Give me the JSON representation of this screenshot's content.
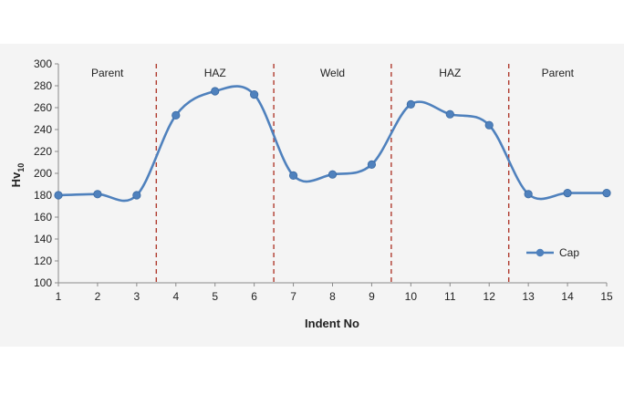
{
  "chart_data": {
    "type": "line",
    "title": "",
    "xlabel": "Indent No",
    "ylabel": "Hv",
    "ylabel_subscript": "10",
    "x": [
      1,
      2,
      3,
      4,
      5,
      6,
      7,
      8,
      9,
      10,
      11,
      12,
      13,
      14,
      15
    ],
    "xlim": [
      1,
      15
    ],
    "ylim": [
      100,
      300
    ],
    "yticks": [
      100,
      120,
      140,
      160,
      180,
      200,
      220,
      240,
      260,
      280,
      300
    ],
    "series": [
      {
        "name": "Cap",
        "values": [
          180,
          181,
          180,
          253,
          275,
          272,
          198,
          199,
          208,
          263,
          254,
          244,
          181,
          182,
          182
        ],
        "color": "#4f81bd"
      }
    ],
    "regions": [
      {
        "label": "Parent",
        "from": 1,
        "to": 3.5
      },
      {
        "label": "HAZ",
        "from": 3.5,
        "to": 6.5
      },
      {
        "label": "Weld",
        "from": 6.5,
        "to": 9.5
      },
      {
        "label": "HAZ",
        "from": 9.5,
        "to": 12.5
      },
      {
        "label": "Parent",
        "from": 12.5,
        "to": 15
      }
    ],
    "region_boundaries": [
      3.5,
      6.5,
      9.5,
      12.5
    ],
    "boundary_color": "#b03a2e",
    "grid": false,
    "legend_position": "right"
  }
}
